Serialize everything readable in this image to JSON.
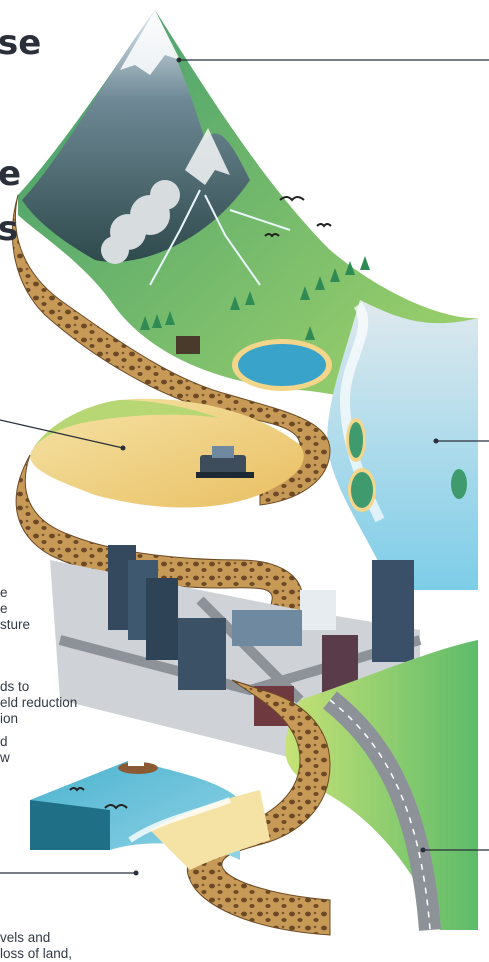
{
  "headings": [
    "se",
    "e",
    "s"
  ],
  "left_text_lines": [
    "e",
    "e",
    "sture",
    "ds to",
    "eld reduction",
    "ion",
    "d",
    "w"
  ],
  "bottom_text_lines": [
    "vels and",
    " loss of land,"
  ],
  "colors": {
    "soil": "#b98a48",
    "grass": "#7fc46a",
    "sand": "#f1d58a",
    "water": "#9ed8ee",
    "road": "#8d9299",
    "callout_line": "#2a2f3a"
  }
}
